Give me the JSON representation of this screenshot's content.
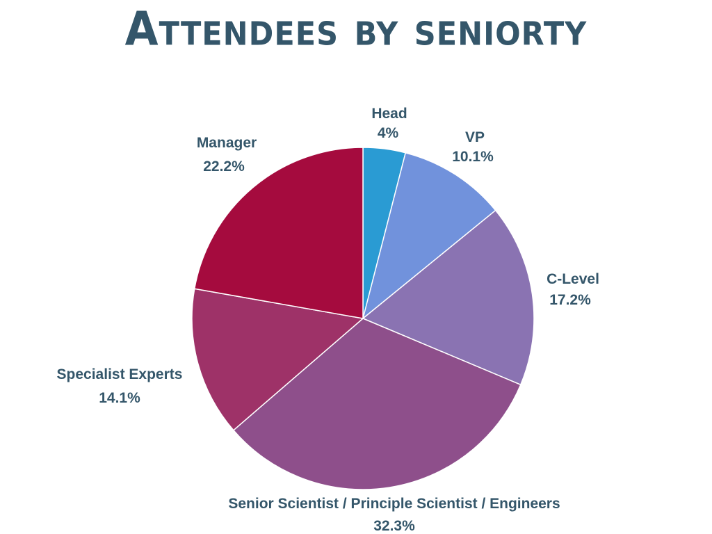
{
  "chart_data": {
    "type": "pie",
    "title": "Attendees by seniorty",
    "slices": [
      {
        "label": "Head",
        "value": 4,
        "value_label": "4%",
        "color": "#2a9bd3"
      },
      {
        "label": "VP",
        "value": 10.1,
        "value_label": "10.1%",
        "color": "#7192dc"
      },
      {
        "label": "C-Level",
        "value": 17.2,
        "value_label": "17.2%",
        "color": "#8a73b2"
      },
      {
        "label": "Senior Scientist / Principle Scientist / Engineers",
        "value": 32.3,
        "value_label": "32.3%",
        "color": "#8e4f8b"
      },
      {
        "label": "Specialist Experts",
        "value": 14.1,
        "value_label": "14.1%",
        "color": "#9e3268"
      },
      {
        "label": "Manager",
        "value": 22.2,
        "value_label": "22.2%",
        "color": "#a50b3e"
      }
    ]
  }
}
